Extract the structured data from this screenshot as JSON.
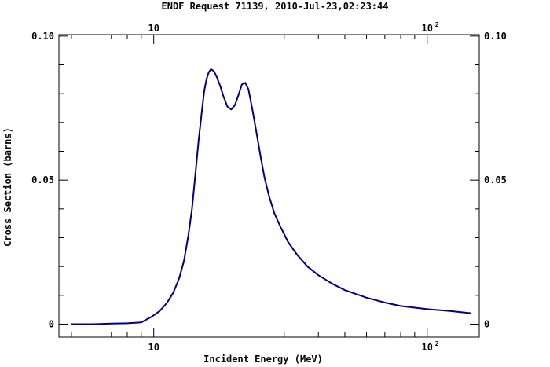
{
  "chart_data": {
    "type": "line",
    "title": "ENDF Request 71139, 2010-Jul-23,02:23:44",
    "xlabel": "Incident Energy (MeV)",
    "ylabel": "Cross Section (barns)",
    "x_scale": "log",
    "xlim": [
      4.5,
      155
    ],
    "ylim": [
      -0.0045,
      0.1005
    ],
    "x_ticks_major": [
      {
        "value": 10,
        "base": "10",
        "exp": ""
      },
      {
        "value": 100,
        "base": "10",
        "exp": "2"
      }
    ],
    "x_ticks_minor": [
      5,
      6,
      7,
      8,
      9,
      20,
      30,
      40,
      50,
      60,
      70,
      80,
      90
    ],
    "y_ticks": [
      {
        "value": 0,
        "label": "0"
      },
      {
        "value": 0.05,
        "label": "0.05"
      },
      {
        "value": 0.1,
        "label": "0.10"
      }
    ],
    "grid": false,
    "line_color": "#000080",
    "series": [
      {
        "name": "",
        "x": [
          5.0,
          6.0,
          7.0,
          8.0,
          9.0,
          9.8,
          10.5,
          11.2,
          11.8,
          12.4,
          12.9,
          13.4,
          13.8,
          14.2,
          14.6,
          15.0,
          15.3,
          15.6,
          15.9,
          16.2,
          16.6,
          17.0,
          17.5,
          18.0,
          18.6,
          19.2,
          19.8,
          20.4,
          21.0,
          21.6,
          22.2,
          23.0,
          23.8,
          24.6,
          25.4,
          26.4,
          27.6,
          29.0,
          31.0,
          33.5,
          36.5,
          40.0,
          45.0,
          50.0,
          60.0,
          70.0,
          80.0,
          100.0,
          120.0,
          145.0
        ],
        "y": [
          0.0,
          0.0,
          0.0002,
          0.0003,
          0.0006,
          0.0025,
          0.0045,
          0.0075,
          0.011,
          0.016,
          0.022,
          0.031,
          0.04,
          0.052,
          0.064,
          0.074,
          0.081,
          0.085,
          0.0875,
          0.0885,
          0.0878,
          0.0858,
          0.0827,
          0.079,
          0.0755,
          0.0745,
          0.076,
          0.0795,
          0.0832,
          0.0838,
          0.0815,
          0.074,
          0.066,
          0.058,
          0.051,
          0.0445,
          0.0385,
          0.034,
          0.0285,
          0.024,
          0.02,
          0.017,
          0.014,
          0.0118,
          0.0092,
          0.0075,
          0.0063,
          0.0052,
          0.0046,
          0.0038
        ]
      }
    ]
  }
}
